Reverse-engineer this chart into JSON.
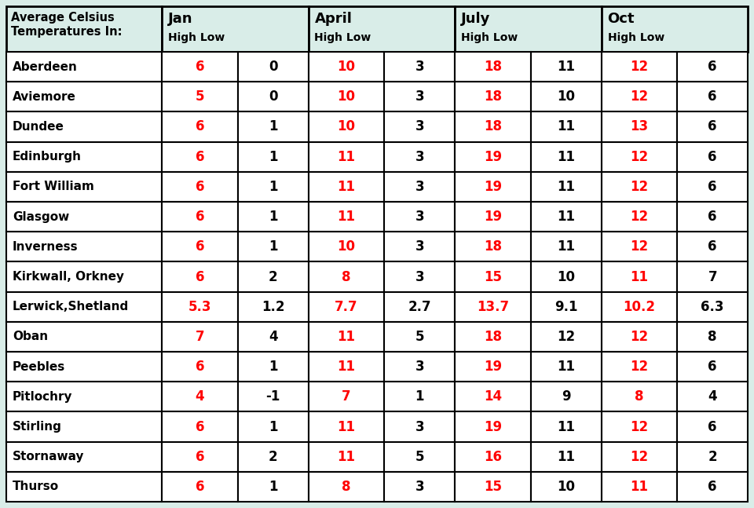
{
  "title": "Average Celsius\nTemperatures In:",
  "months": [
    "Jan",
    "April",
    "July",
    "Oct"
  ],
  "data": [
    {
      "loc": "Aberdeen",
      "jan_h": "6",
      "jan_l": "0",
      "apr_h": "10",
      "apr_l": "3",
      "jul_h": "18",
      "jul_l": "11",
      "oct_h": "12",
      "oct_l": "6"
    },
    {
      "loc": "Aviemore",
      "jan_h": "5",
      "jan_l": "0",
      "apr_h": "10",
      "apr_l": "3",
      "jul_h": "18",
      "jul_l": "10",
      "oct_h": "12",
      "oct_l": "6"
    },
    {
      "loc": "Dundee",
      "jan_h": "6",
      "jan_l": "1",
      "apr_h": "10",
      "apr_l": "3",
      "jul_h": "18",
      "jul_l": "11",
      "oct_h": "13",
      "oct_l": "6"
    },
    {
      "loc": "Edinburgh",
      "jan_h": "6",
      "jan_l": "1",
      "apr_h": "11",
      "apr_l": "3",
      "jul_h": "19",
      "jul_l": "11",
      "oct_h": "12",
      "oct_l": "6"
    },
    {
      "loc": "Fort William",
      "jan_h": "6",
      "jan_l": "1",
      "apr_h": "11",
      "apr_l": "3",
      "jul_h": "19",
      "jul_l": "11",
      "oct_h": "12",
      "oct_l": "6"
    },
    {
      "loc": "Glasgow",
      "jan_h": "6",
      "jan_l": "1",
      "apr_h": "11",
      "apr_l": "3",
      "jul_h": "19",
      "jul_l": "11",
      "oct_h": "12",
      "oct_l": "6"
    },
    {
      "loc": "Inverness",
      "jan_h": "6",
      "jan_l": "1",
      "apr_h": "10",
      "apr_l": "3",
      "jul_h": "18",
      "jul_l": "11",
      "oct_h": "12",
      "oct_l": "6"
    },
    {
      "loc": "Kirkwall, Orkney",
      "jan_h": "6",
      "jan_l": "2",
      "apr_h": "8",
      "apr_l": "3",
      "jul_h": "15",
      "jul_l": "10",
      "oct_h": "11",
      "oct_l": "7"
    },
    {
      "loc": "Lerwick,Shetland",
      "jan_h": "5.3",
      "jan_l": "1.2",
      "apr_h": "7.7",
      "apr_l": "2.7",
      "jul_h": "13.7",
      "jul_l": "9.1",
      "oct_h": "10.2",
      "oct_l": "6.3"
    },
    {
      "loc": "Oban",
      "jan_h": "7",
      "jan_l": "4",
      "apr_h": "11",
      "apr_l": "5",
      "jul_h": "18",
      "jul_l": "12",
      "oct_h": "12",
      "oct_l": "8"
    },
    {
      "loc": "Peebles",
      "jan_h": "6",
      "jan_l": "1",
      "apr_h": "11",
      "apr_l": "3",
      "jul_h": "19",
      "jul_l": "11",
      "oct_h": "12",
      "oct_l": "6"
    },
    {
      "loc": "Pitlochry",
      "jan_h": "4",
      "jan_l": "-1",
      "apr_h": "7",
      "apr_l": "1",
      "jul_h": "14",
      "jul_l": "9",
      "oct_h": "8",
      "oct_l": "4"
    },
    {
      "loc": "Stirling",
      "jan_h": "6",
      "jan_l": "1",
      "apr_h": "11",
      "apr_l": "3",
      "jul_h": "19",
      "jul_l": "11",
      "oct_h": "12",
      "oct_l": "6"
    },
    {
      "loc": "Stornaway",
      "jan_h": "6",
      "jan_l": "2",
      "apr_h": "11",
      "apr_l": "5",
      "jul_h": "16",
      "jul_l": "11",
      "oct_h": "12",
      "oct_l": "2"
    },
    {
      "loc": "Thurso",
      "jan_h": "6",
      "jan_l": "1",
      "apr_h": "8",
      "apr_l": "3",
      "jul_h": "15",
      "jul_l": "10",
      "oct_h": "11",
      "oct_l": "6"
    }
  ],
  "header_bg": "#d9ede8",
  "row_bg": "#ffffff",
  "border_color": "#000000",
  "high_color": "#ff0000",
  "low_color": "#000000",
  "header_text_color": "#000000",
  "fig_bg": "#d9ede8",
  "fig_width": 9.6,
  "fig_height": 6.47,
  "dpi": 100
}
